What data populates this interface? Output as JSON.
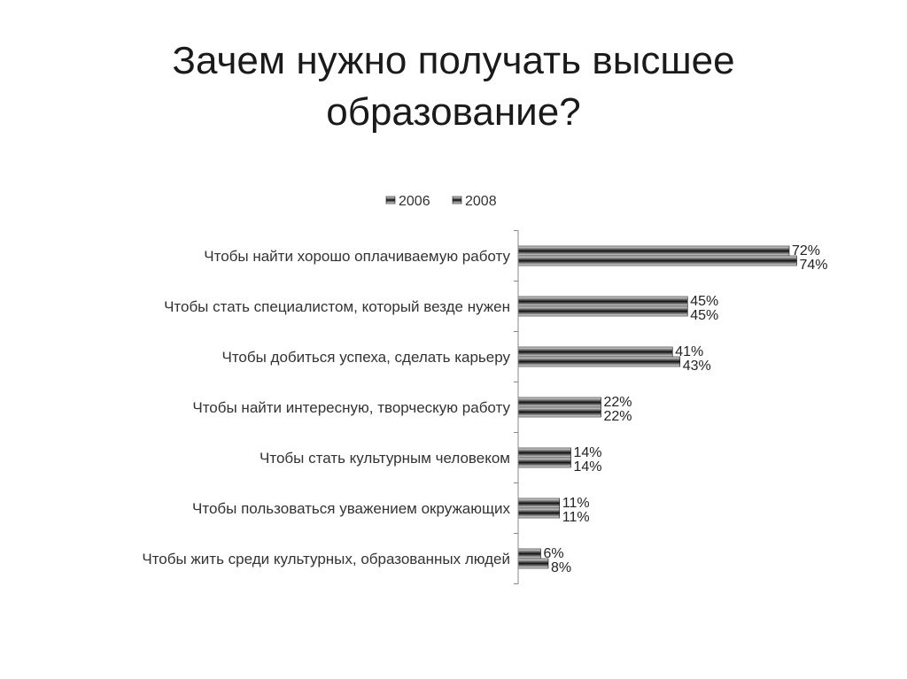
{
  "title": {
    "line1": "Зачем нужно получать высшее",
    "line2": "образование?"
  },
  "chart_data": {
    "type": "bar",
    "orientation": "horizontal",
    "categories": [
      "Чтобы найти хорошо оплачиваемую работу",
      "Чтобы стать специалистом, который везде нужен",
      "Чтобы добиться успеха, сделать карьеру",
      "Чтобы найти интересную, творческую работу",
      "Чтобы стать культурным человеком",
      "Чтобы пользоваться уважением окружающих",
      "Чтобы жить среди культурных, образованных людей"
    ],
    "series": [
      {
        "name": "2006",
        "values": [
          72,
          45,
          41,
          22,
          14,
          11,
          6
        ],
        "labels": [
          "72%",
          "45%",
          "41%",
          "22%",
          "14%",
          "11%",
          "6%"
        ]
      },
      {
        "name": "2008",
        "values": [
          74,
          45,
          43,
          22,
          14,
          11,
          8
        ],
        "labels": [
          "74%",
          "45%",
          "43%",
          "22%",
          "14%",
          "11%",
          "8%"
        ]
      }
    ],
    "xlim": [
      0,
      100
    ],
    "grid": false,
    "legend": "top",
    "colors": {
      "bar_dark": "#111111",
      "bar_light": "#f2f2f2",
      "axis": "#888888"
    }
  }
}
